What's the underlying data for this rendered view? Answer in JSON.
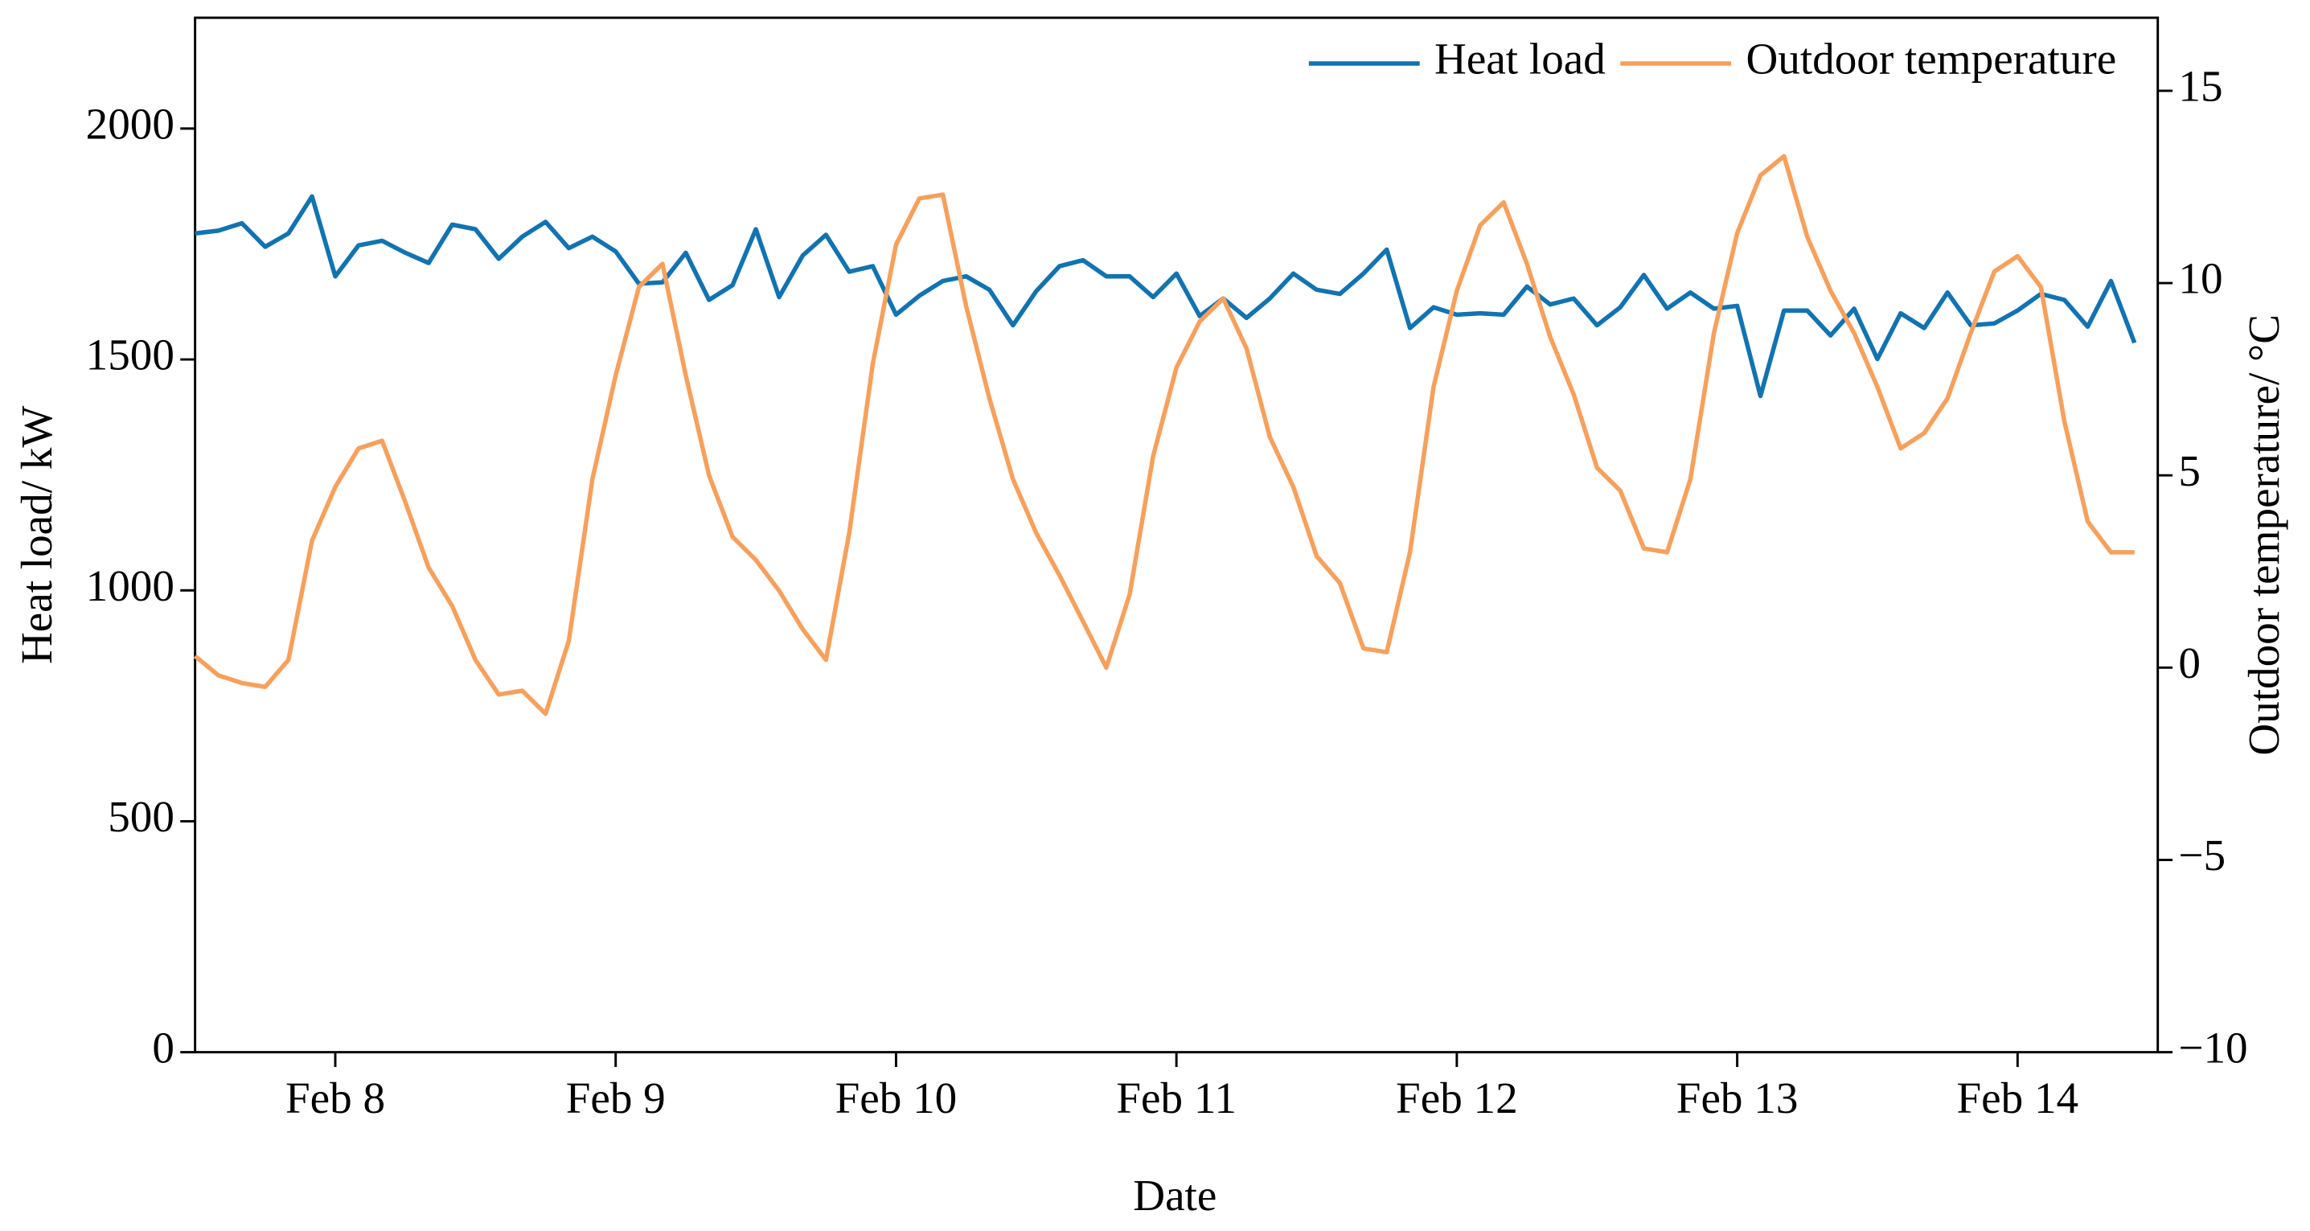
{
  "chart_data": {
    "type": "line",
    "x_label": "Date",
    "y_label": "Heat load/ kW",
    "y2_label": "Outdoor temperature/ °C",
    "legend": "upper right",
    "grid": false,
    "xlim": [
      7.5,
      14.5
    ],
    "xticks": [
      {
        "value": 8,
        "label": "Feb 8"
      },
      {
        "value": 9,
        "label": "Feb 9"
      },
      {
        "value": 10,
        "label": "Feb 10"
      },
      {
        "value": 11,
        "label": "Feb 11"
      },
      {
        "value": 12,
        "label": "Feb 12"
      },
      {
        "value": 13,
        "label": "Feb 13"
      },
      {
        "value": 14,
        "label": "Feb 14"
      }
    ],
    "ylim": [
      0,
      2240
    ],
    "yticks": [
      0,
      500,
      1000,
      1500,
      2000
    ],
    "y2lim": [
      -10,
      16.9
    ],
    "y2ticks": [
      {
        "value": -10,
        "label": "−10"
      },
      {
        "value": -5,
        "label": "−5"
      },
      0,
      5,
      10,
      15
    ],
    "x": [
      7.5,
      7.583,
      7.667,
      7.75,
      7.833,
      7.917,
      8,
      8.083,
      8.167,
      8.25,
      8.333,
      8.417,
      8.5,
      8.583,
      8.667,
      8.75,
      8.833,
      8.917,
      9,
      9.083,
      9.167,
      9.25,
      9.333,
      9.417,
      9.5,
      9.583,
      9.667,
      9.75,
      9.833,
      9.917,
      10,
      10.083,
      10.167,
      10.25,
      10.333,
      10.417,
      10.5,
      10.583,
      10.667,
      10.75,
      10.833,
      10.917,
      11,
      11.083,
      11.167,
      11.25,
      11.333,
      11.417,
      11.5,
      11.583,
      11.667,
      11.75,
      11.833,
      11.917,
      12,
      12.083,
      12.167,
      12.25,
      12.333,
      12.417,
      12.5,
      12.583,
      12.667,
      12.75,
      12.833,
      12.917,
      13,
      13.083,
      13.167,
      13.25,
      13.333,
      13.417,
      13.5,
      13.583,
      13.667,
      13.75,
      13.833,
      13.917,
      14,
      14.083,
      14.167,
      14.25,
      14.333,
      14.417
    ],
    "series": [
      {
        "name": "Heat load",
        "color": "#1173b2",
        "axis": "y",
        "values": [
          1773,
          1779,
          1795,
          1744,
          1773,
          1853,
          1680,
          1747,
          1757,
          1731,
          1709,
          1792,
          1782,
          1718,
          1766,
          1798,
          1741,
          1766,
          1734,
          1664,
          1667,
          1731,
          1629,
          1661,
          1782,
          1635,
          1725,
          1770,
          1690,
          1702,
          1597,
          1638,
          1670,
          1680,
          1651,
          1574,
          1648,
          1702,
          1715,
          1680,
          1680,
          1635,
          1686,
          1594,
          1632,
          1590,
          1632,
          1686,
          1651,
          1642,
          1686,
          1738,
          1568,
          1613,
          1597,
          1600,
          1597,
          1658,
          1619,
          1632,
          1574,
          1613,
          1683,
          1610,
          1645,
          1610,
          1616,
          1421,
          1606,
          1606,
          1552,
          1610,
          1501,
          1600,
          1568,
          1645,
          1574,
          1578,
          1606,
          1642,
          1629,
          1571,
          1670,
          1536
        ]
      },
      {
        "name": "Outdoor temperature",
        "color": "#f7a05c",
        "axis": "y2",
        "values": [
          0.3,
          -0.2,
          -0.4,
          -0.5,
          0.2,
          3.3,
          4.7,
          5.7,
          5.9,
          4.3,
          2.6,
          1.6,
          0.2,
          -0.7,
          -0.6,
          -1.2,
          0.7,
          4.9,
          7.6,
          9.9,
          10.5,
          7.6,
          5.0,
          3.4,
          2.8,
          2.0,
          1.0,
          0.2,
          3.5,
          7.9,
          11.0,
          12.2,
          12.3,
          9.4,
          7.0,
          4.9,
          3.5,
          2.4,
          1.2,
          0.0,
          1.9,
          5.5,
          7.8,
          9.0,
          9.6,
          8.3,
          6.0,
          4.7,
          2.9,
          2.2,
          0.5,
          0.4,
          3.0,
          7.3,
          9.8,
          11.5,
          12.1,
          10.5,
          8.6,
          7.1,
          5.2,
          4.6,
          3.1,
          3.0,
          4.9,
          8.7,
          11.3,
          12.8,
          13.3,
          11.2,
          9.8,
          8.7,
          7.3,
          5.7,
          6.1,
          7.0,
          8.7,
          10.3,
          10.7,
          9.9,
          6.4,
          3.8,
          3.0,
          3.0
        ]
      }
    ]
  }
}
